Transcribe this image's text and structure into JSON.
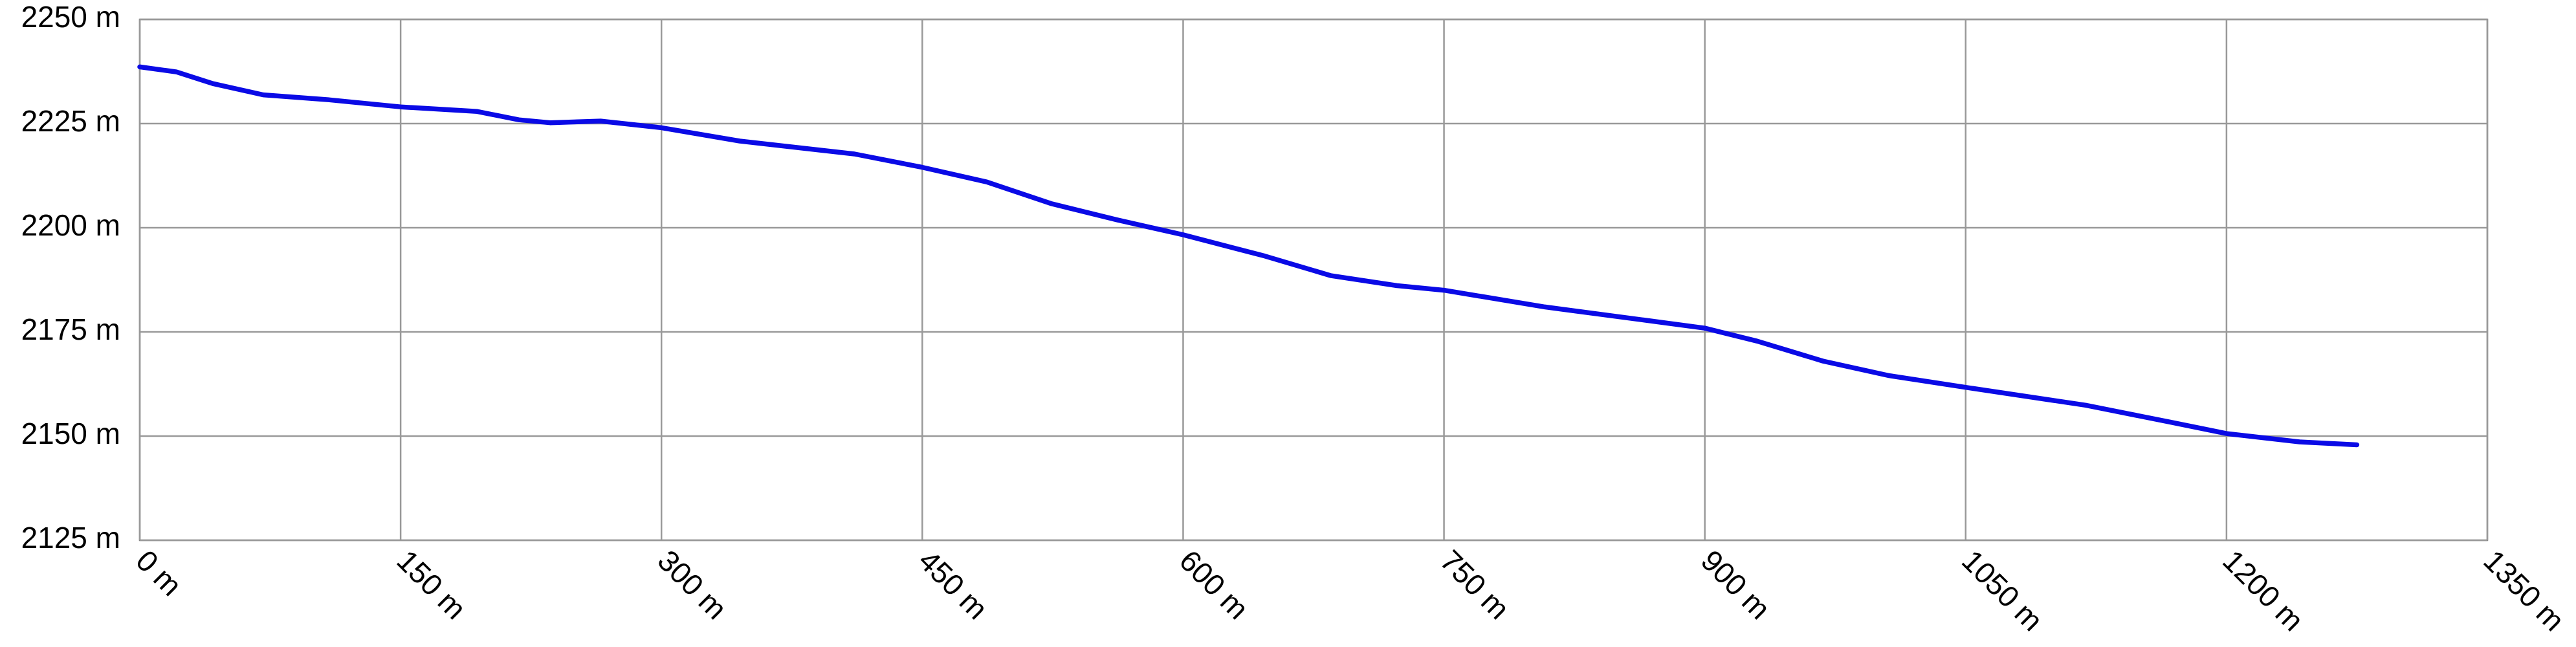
{
  "chart_data": {
    "type": "line",
    "x": [
      0,
      21,
      42,
      71,
      109,
      150,
      194,
      218,
      236,
      265,
      300,
      345,
      411,
      450,
      487,
      524,
      562,
      600,
      647,
      685,
      723,
      750,
      808,
      864,
      900,
      930,
      968,
      1006,
      1050,
      1119,
      1167,
      1200,
      1242,
      1275
    ],
    "values": [
      2238.6,
      2237.4,
      2234.6,
      2231.9,
      2230.7,
      2229,
      2227.9,
      2225.9,
      2225.2,
      2225.6,
      2224,
      2220.8,
      2217.7,
      2214.5,
      2211,
      2205.8,
      2201.9,
      2198.3,
      2193.2,
      2188.5,
      2186.1,
      2185,
      2181,
      2177.9,
      2175.9,
      2172.8,
      2168,
      2164.5,
      2161.7,
      2157.4,
      2153.4,
      2150.6,
      2148.6,
      2147.9
    ],
    "color": "#0a0ae6",
    "xlim": [
      0,
      1350
    ],
    "xticks": [
      {
        "value": 0,
        "label": "0 m"
      },
      {
        "value": 150,
        "label": "150 m"
      },
      {
        "value": 300,
        "label": "300 m"
      },
      {
        "value": 450,
        "label": "450 m"
      },
      {
        "value": 600,
        "label": "600 m"
      },
      {
        "value": 750,
        "label": "750 m"
      },
      {
        "value": 900,
        "label": "900 m"
      },
      {
        "value": 1050,
        "label": "1050 m"
      },
      {
        "value": 1200,
        "label": "1200 m"
      },
      {
        "value": 1350,
        "label": "1350 m"
      }
    ],
    "ylim": [
      2125,
      2250
    ],
    "yticks": [
      {
        "value": 2125,
        "label": "2125 m"
      },
      {
        "value": 2150,
        "label": "2150 m"
      },
      {
        "value": 2175,
        "label": "2175 m"
      },
      {
        "value": 2200,
        "label": "2200 m"
      },
      {
        "value": 2225,
        "label": "2225 m"
      },
      {
        "value": 2250,
        "label": "2250 m"
      }
    ],
    "grid": true
  }
}
